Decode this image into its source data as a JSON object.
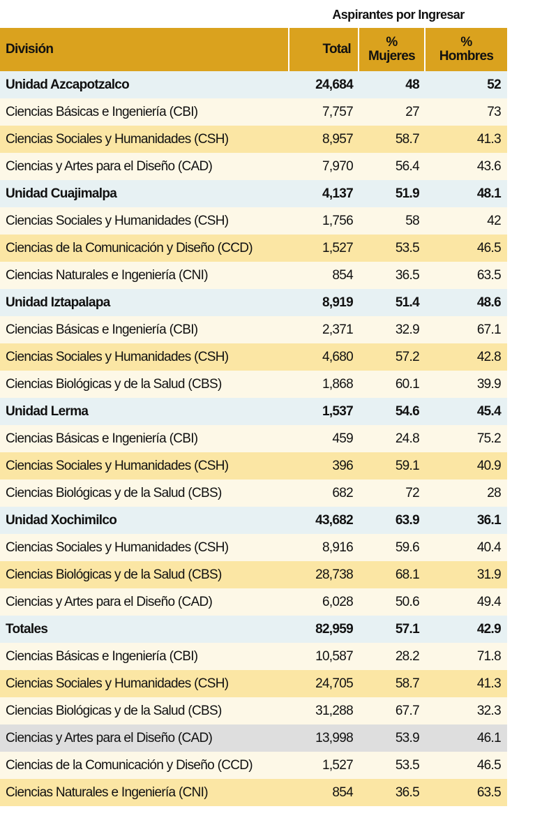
{
  "header": {
    "title": "Aspirantes por Ingresar"
  },
  "table": {
    "columns": [
      "División",
      "Total",
      [
        "%",
        "Mujeres"
      ],
      [
        "%",
        "Hombres"
      ]
    ],
    "rows": [
      [
        "Unidad Azcapotzalco",
        "24,684",
        "48",
        "52"
      ],
      [
        "Ciencias Básicas e Ingeniería (CBI)",
        "7,757",
        "27",
        "73"
      ],
      [
        "Ciencias Sociales y Humanidades (CSH)",
        "8,957",
        "58.7",
        "41.3"
      ],
      [
        "Ciencias y Artes para el Diseño (CAD)",
        "7,970",
        "56.4",
        "43.6"
      ],
      [
        "Unidad Cuajimalpa",
        "4,137",
        "51.9",
        "48.1"
      ],
      [
        "Ciencias Sociales y Humanidades (CSH)",
        "1,756",
        "58",
        "42"
      ],
      [
        "Ciencias de la Comunicación y Diseño (CCD)",
        "1,527",
        "53.5",
        "46.5"
      ],
      [
        "Ciencias Naturales e Ingeniería (CNI)",
        "854",
        "36.5",
        "63.5"
      ],
      [
        "Unidad Iztapalapa",
        "8,919",
        "51.4",
        "48.6"
      ],
      [
        "Ciencias Básicas e Ingeniería (CBI)",
        "2,371",
        "32.9",
        "67.1"
      ],
      [
        "Ciencias Sociales y Humanidades (CSH)",
        "4,680",
        "57.2",
        "42.8"
      ],
      [
        "Ciencias Biológicas y de la Salud (CBS)",
        "1,868",
        "60.1",
        "39.9"
      ],
      [
        "Unidad Lerma",
        "1,537",
        "54.6",
        "45.4"
      ],
      [
        "Ciencias Básicas e Ingeniería (CBI)",
        "459",
        "24.8",
        "75.2"
      ],
      [
        "Ciencias Sociales y Humanidades (CSH)",
        "396",
        "59.1",
        "40.9"
      ],
      [
        "Ciencias Biológicas y de la Salud (CBS)",
        "682",
        "72",
        "28"
      ],
      [
        "Unidad Xochimilco",
        "43,682",
        "63.9",
        "36.1"
      ],
      [
        "Ciencias Sociales y Humanidades (CSH)",
        "8,916",
        "59.6",
        "40.4"
      ],
      [
        "Ciencias Biológicas y de la Salud (CBS)",
        "28,738",
        "68.1",
        "31.9"
      ],
      [
        "Ciencias y Artes para el Diseño (CAD)",
        "6,028",
        "50.6",
        "49.4"
      ],
      [
        "Totales",
        "82,959",
        "57.1",
        "42.9"
      ],
      [
        "Ciencias Básicas e Ingeniería (CBI)",
        "10,587",
        "28.2",
        "71.8"
      ],
      [
        "Ciencias Sociales y Humanidades (CSH)",
        "24,705",
        "58.7",
        "41.3"
      ],
      [
        "Ciencias Biológicas y de la Salud (CBS)",
        "31,288",
        "67.7",
        "32.3"
      ],
      [
        "Ciencias y Artes para el Diseño (CAD)",
        "13,998",
        "53.9",
        "46.1"
      ],
      [
        "Ciencias de la Comunicación y Diseño (CCD)",
        "1,527",
        "53.5",
        "46.5"
      ],
      [
        "Ciencias Naturales e Ingeniería (CNI)",
        "854",
        "36.5",
        "63.5"
      ]
    ]
  }
}
